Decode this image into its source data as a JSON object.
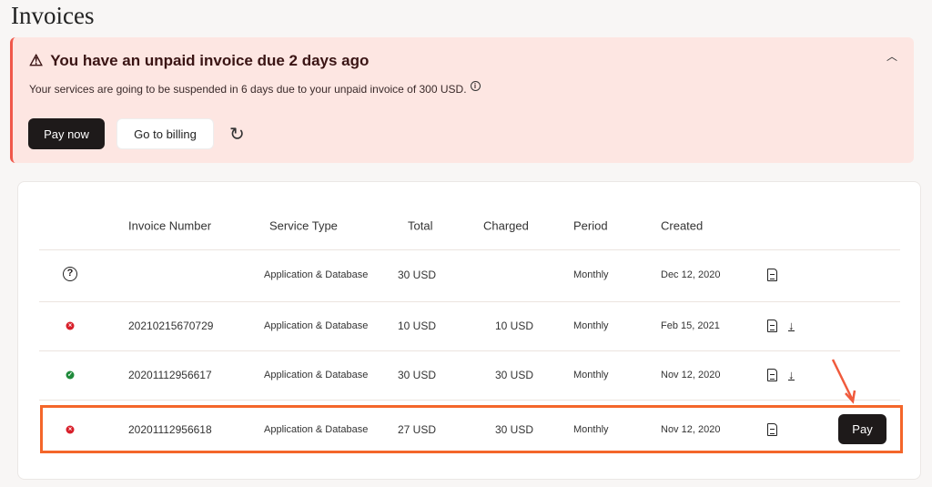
{
  "page": {
    "title": "Invoices"
  },
  "banner": {
    "heading": "You have an unpaid invoice due 2 days ago",
    "message": "Your services are going to be suspended in 6 days due to your unpaid invoice of 300 USD.",
    "pay_now": "Pay now",
    "go_to_billing": "Go to billing",
    "icons": [
      "warning-icon",
      "info-icon",
      "refresh-icon",
      "chevron-up-icon"
    ]
  },
  "table": {
    "headers": {
      "invoice_number": "Invoice Number",
      "service_type": "Service Type",
      "total": "Total",
      "charged": "Charged",
      "period": "Period",
      "created": "Created"
    },
    "rows": [
      {
        "status": "unknown",
        "invoice_number": "",
        "service_type": "Application & Database",
        "total": "30 USD",
        "charged": "",
        "period": "Monthly",
        "created": "Dec 12, 2020",
        "download": false
      },
      {
        "status": "failed",
        "invoice_number": "20210215670729",
        "service_type": "Application & Database",
        "total": "10 USD",
        "charged": "10 USD",
        "period": "Monthly",
        "created": "Feb 15, 2021",
        "download": true
      },
      {
        "status": "paid",
        "invoice_number": "20201112956617",
        "service_type": "Application & Database",
        "total": "30 USD",
        "charged": "30 USD",
        "period": "Monthly",
        "created": "Nov 12, 2020",
        "download": true
      },
      {
        "status": "failed",
        "invoice_number": "20201112956618",
        "service_type": "Application & Database",
        "total": "27 USD",
        "charged": "30 USD",
        "period": "Monthly",
        "created": "Nov 12, 2020",
        "download": false,
        "action": "Pay"
      }
    ]
  },
  "colors": {
    "failed": "#d81f2a",
    "paid": "#1f8a3b",
    "highlight": "#f4662a",
    "banner_bg": "#fde6e2"
  }
}
